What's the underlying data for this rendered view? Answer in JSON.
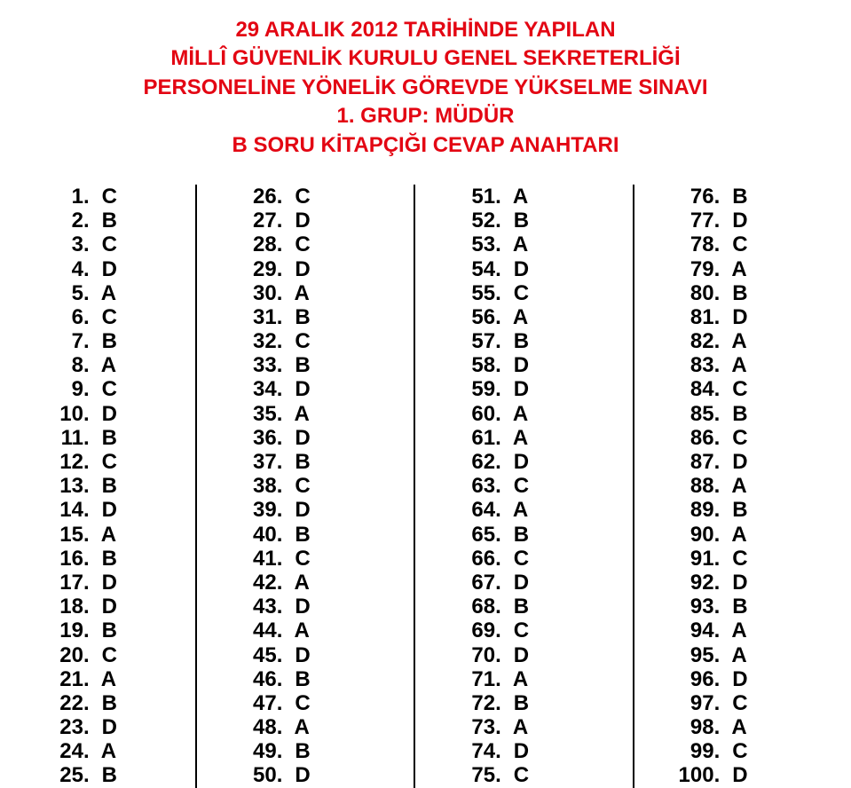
{
  "title": {
    "lines": [
      "29 ARALIK 2012 TARİHİNDE YAPILAN",
      "MİLLÎ GÜVENLİK KURULU GENEL SEKRETERLİĞİ",
      "PERSONELİNE YÖNELİK GÖREVDE YÜKSELME SINAVI",
      "1. GRUP: MÜDÜR",
      "B SORU KİTAPÇIĞI CEVAP ANAHTARI"
    ],
    "color": "#e30613",
    "fontsize_pt": 18
  },
  "body": {
    "fontsize_pt": 18,
    "text_color": "#000000",
    "background_color": "#ffffff",
    "separator_color": "#000000",
    "column_count": 4,
    "rows_per_column": 25
  },
  "answers": [
    {
      "n": 1,
      "a": "C"
    },
    {
      "n": 2,
      "a": "B"
    },
    {
      "n": 3,
      "a": "C"
    },
    {
      "n": 4,
      "a": "D"
    },
    {
      "n": 5,
      "a": "A"
    },
    {
      "n": 6,
      "a": "C"
    },
    {
      "n": 7,
      "a": "B"
    },
    {
      "n": 8,
      "a": "A"
    },
    {
      "n": 9,
      "a": "C"
    },
    {
      "n": 10,
      "a": "D"
    },
    {
      "n": 11,
      "a": "B"
    },
    {
      "n": 12,
      "a": "C"
    },
    {
      "n": 13,
      "a": "B"
    },
    {
      "n": 14,
      "a": "D"
    },
    {
      "n": 15,
      "a": "A"
    },
    {
      "n": 16,
      "a": "B"
    },
    {
      "n": 17,
      "a": "D"
    },
    {
      "n": 18,
      "a": "D"
    },
    {
      "n": 19,
      "a": "B"
    },
    {
      "n": 20,
      "a": "C"
    },
    {
      "n": 21,
      "a": "A"
    },
    {
      "n": 22,
      "a": "B"
    },
    {
      "n": 23,
      "a": "D"
    },
    {
      "n": 24,
      "a": "A"
    },
    {
      "n": 25,
      "a": "B"
    },
    {
      "n": 26,
      "a": "C"
    },
    {
      "n": 27,
      "a": "D"
    },
    {
      "n": 28,
      "a": "C"
    },
    {
      "n": 29,
      "a": "D"
    },
    {
      "n": 30,
      "a": "A"
    },
    {
      "n": 31,
      "a": "B"
    },
    {
      "n": 32,
      "a": "C"
    },
    {
      "n": 33,
      "a": "B"
    },
    {
      "n": 34,
      "a": "D"
    },
    {
      "n": 35,
      "a": "A"
    },
    {
      "n": 36,
      "a": "D"
    },
    {
      "n": 37,
      "a": "B"
    },
    {
      "n": 38,
      "a": "C"
    },
    {
      "n": 39,
      "a": "D"
    },
    {
      "n": 40,
      "a": "B"
    },
    {
      "n": 41,
      "a": "C"
    },
    {
      "n": 42,
      "a": "A"
    },
    {
      "n": 43,
      "a": "D"
    },
    {
      "n": 44,
      "a": "A"
    },
    {
      "n": 45,
      "a": "D"
    },
    {
      "n": 46,
      "a": "B"
    },
    {
      "n": 47,
      "a": "C"
    },
    {
      "n": 48,
      "a": "A"
    },
    {
      "n": 49,
      "a": "B"
    },
    {
      "n": 50,
      "a": "D"
    },
    {
      "n": 51,
      "a": "A"
    },
    {
      "n": 52,
      "a": "B"
    },
    {
      "n": 53,
      "a": "A"
    },
    {
      "n": 54,
      "a": "D"
    },
    {
      "n": 55,
      "a": "C"
    },
    {
      "n": 56,
      "a": "A"
    },
    {
      "n": 57,
      "a": "B"
    },
    {
      "n": 58,
      "a": "D"
    },
    {
      "n": 59,
      "a": "D"
    },
    {
      "n": 60,
      "a": "A"
    },
    {
      "n": 61,
      "a": "A"
    },
    {
      "n": 62,
      "a": "D"
    },
    {
      "n": 63,
      "a": "C"
    },
    {
      "n": 64,
      "a": "A"
    },
    {
      "n": 65,
      "a": "B"
    },
    {
      "n": 66,
      "a": "C"
    },
    {
      "n": 67,
      "a": "D"
    },
    {
      "n": 68,
      "a": "B"
    },
    {
      "n": 69,
      "a": "C"
    },
    {
      "n": 70,
      "a": "D"
    },
    {
      "n": 71,
      "a": "A"
    },
    {
      "n": 72,
      "a": "B"
    },
    {
      "n": 73,
      "a": "A"
    },
    {
      "n": 74,
      "a": "D"
    },
    {
      "n": 75,
      "a": "C"
    },
    {
      "n": 76,
      "a": "B"
    },
    {
      "n": 77,
      "a": "D"
    },
    {
      "n": 78,
      "a": "C"
    },
    {
      "n": 79,
      "a": "A"
    },
    {
      "n": 80,
      "a": "B"
    },
    {
      "n": 81,
      "a": "D"
    },
    {
      "n": 82,
      "a": "A"
    },
    {
      "n": 83,
      "a": "A"
    },
    {
      "n": 84,
      "a": "C"
    },
    {
      "n": 85,
      "a": "B"
    },
    {
      "n": 86,
      "a": "C"
    },
    {
      "n": 87,
      "a": "D"
    },
    {
      "n": 88,
      "a": "A"
    },
    {
      "n": 89,
      "a": "B"
    },
    {
      "n": 90,
      "a": "A"
    },
    {
      "n": 91,
      "a": "C"
    },
    {
      "n": 92,
      "a": "D"
    },
    {
      "n": 93,
      "a": "B"
    },
    {
      "n": 94,
      "a": "A"
    },
    {
      "n": 95,
      "a": "A"
    },
    {
      "n": 96,
      "a": "D"
    },
    {
      "n": 97,
      "a": "C"
    },
    {
      "n": 98,
      "a": "A"
    },
    {
      "n": 99,
      "a": "C"
    },
    {
      "n": 100,
      "a": "D"
    }
  ]
}
